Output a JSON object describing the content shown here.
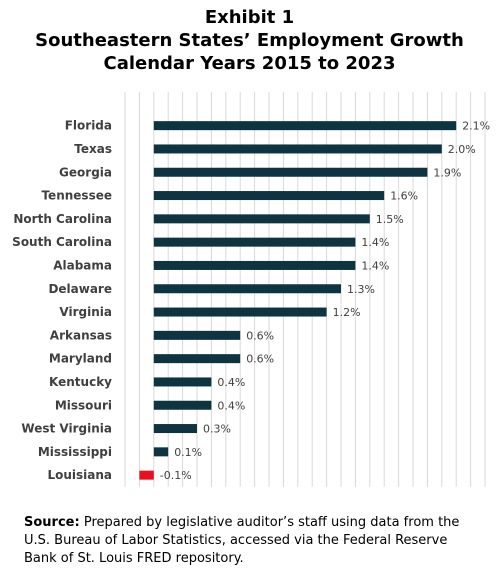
{
  "title_lines": [
    "Exhibit 1",
    "Southeastern States’ Employment Growth",
    "Calendar Years 2015 to 2023"
  ],
  "source": {
    "label": "Source:",
    "text": "Prepared by legislative auditor’s staff using data from the U.S. Bureau of Labor Statistics, accessed via the Federal Reserve Bank of St. Louis FRED repository."
  },
  "colors": {
    "positive": "#0d3440",
    "negative": "#e8101c",
    "grid": "#d9d9d9"
  },
  "chart_data": {
    "type": "bar",
    "orientation": "horizontal",
    "categories": [
      "Florida",
      "Texas",
      "Georgia",
      "Tennessee",
      "North Carolina",
      "South Carolina",
      "Alabama",
      "Delaware",
      "Virginia",
      "Arkansas",
      "Maryland",
      "Kentucky",
      "Missouri",
      "West Virginia",
      "Mississippi",
      "Louisiana"
    ],
    "values": [
      2.1,
      2.0,
      1.9,
      1.6,
      1.5,
      1.4,
      1.4,
      1.3,
      1.2,
      0.6,
      0.6,
      0.4,
      0.4,
      0.3,
      0.1,
      -0.1
    ],
    "value_labels": [
      "2.1%",
      "2.0%",
      "1.9%",
      "1.6%",
      "1.5%",
      "1.4%",
      "1.4%",
      "1.3%",
      "1.2%",
      "0.6%",
      "0.6%",
      "0.4%",
      "0.4%",
      "0.3%",
      "0.1%",
      "-0.1%"
    ],
    "xlim": [
      -0.2,
      2.3
    ],
    "grid": "vertical",
    "legend": "none"
  }
}
